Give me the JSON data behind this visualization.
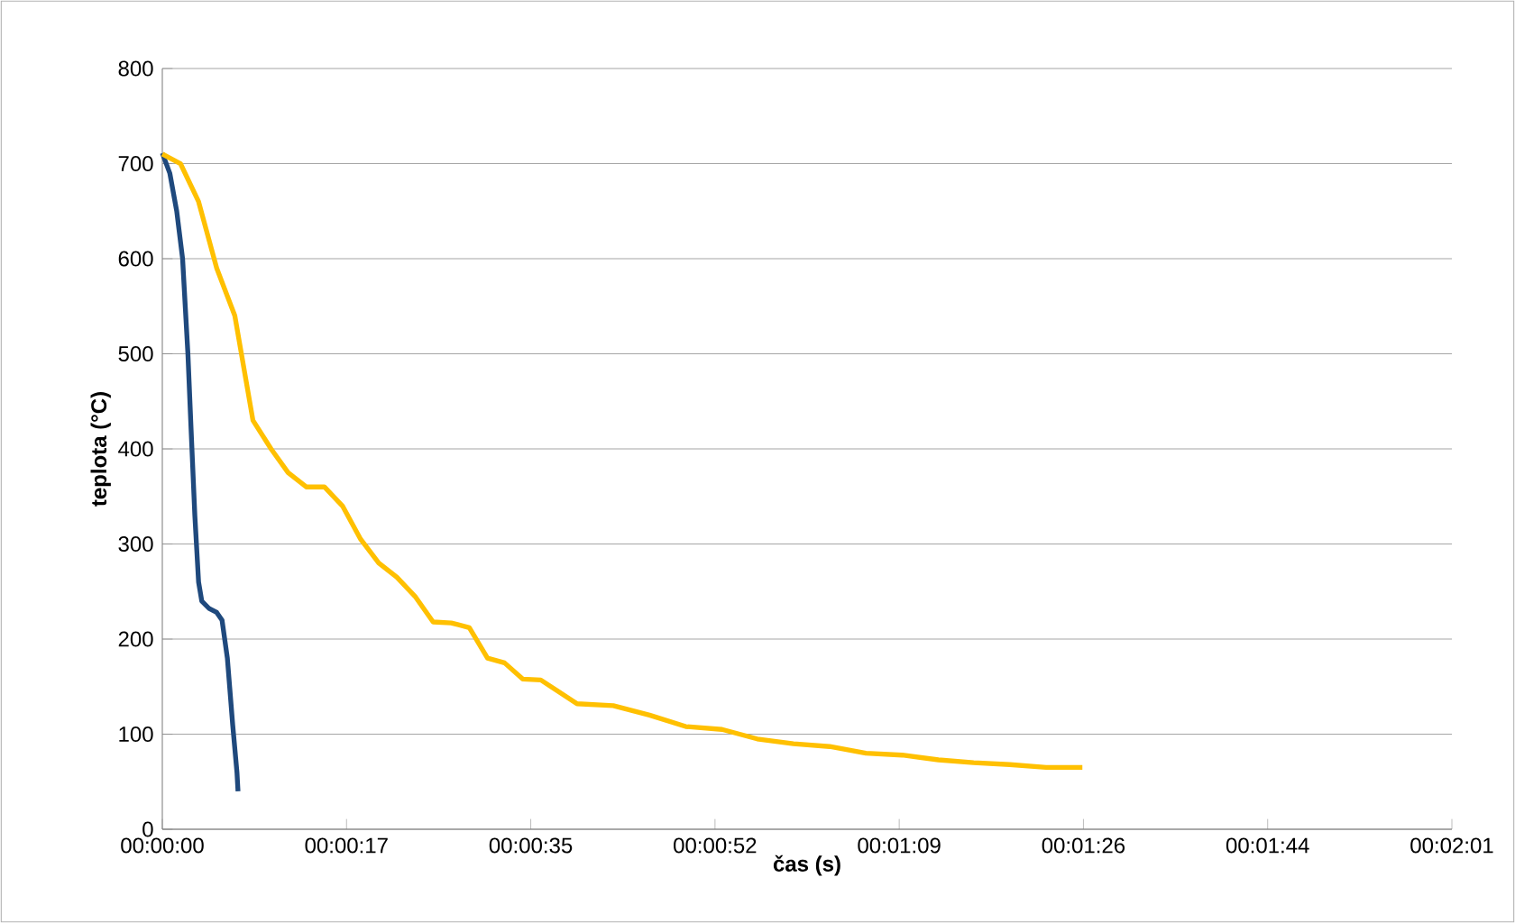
{
  "chart_data": {
    "type": "line",
    "xlabel": "čas (s)",
    "ylabel": "teplota (°C)",
    "xlim": [
      0,
      120.96
    ],
    "ylim": [
      0,
      800
    ],
    "xticks": [
      {
        "value": 0,
        "label": "00:00:00"
      },
      {
        "value": 17.28,
        "label": "00:00:17"
      },
      {
        "value": 34.56,
        "label": "00:00:35"
      },
      {
        "value": 51.84,
        "label": "00:00:52"
      },
      {
        "value": 69.12,
        "label": "00:01:09"
      },
      {
        "value": 86.4,
        "label": "00:01:26"
      },
      {
        "value": 103.68,
        "label": "00:01:44"
      },
      {
        "value": 120.96,
        "label": "00:02:01"
      }
    ],
    "yticks": [
      0,
      100,
      200,
      300,
      400,
      500,
      600,
      700,
      800
    ],
    "grid": "y",
    "marker": "none",
    "line_style": "solid",
    "series": [
      {
        "color": "#1f497d",
        "x": [
          0,
          0.7,
          1.35,
          1.9,
          2.4,
          2.7,
          3.05,
          3.4,
          3.7,
          4.4,
          5.1,
          5.6,
          6.1,
          6.6,
          7.0,
          7.1
        ],
        "values": [
          711,
          690,
          650,
          600,
          500,
          420,
          330,
          260,
          240,
          232,
          228,
          220,
          180,
          110,
          60,
          40
        ]
      },
      {
        "color": "#ffc000",
        "x": [
          0,
          1.7,
          3.4,
          5.1,
          6.8,
          8.5,
          10.2,
          11.8,
          13.5,
          15.2,
          16.9,
          18.6,
          20.3,
          22.0,
          23.7,
          25.4,
          27.1,
          28.8,
          30.5,
          32.1,
          33.8,
          35.5,
          38.9,
          42.3,
          45.7,
          49.1,
          52.5,
          55.8,
          59.2,
          62.6,
          66.0,
          69.4,
          72.8,
          76.1,
          79.5,
          82.9,
          86.3
        ],
        "values": [
          710,
          700,
          660,
          590,
          540,
          430,
          400,
          375,
          360,
          360,
          340,
          305,
          280,
          265,
          245,
          218,
          217,
          212,
          180,
          175,
          158,
          157,
          132,
          130,
          120,
          108,
          105,
          95,
          90,
          87,
          80,
          78,
          73,
          70,
          68,
          65,
          65
        ]
      }
    ]
  }
}
